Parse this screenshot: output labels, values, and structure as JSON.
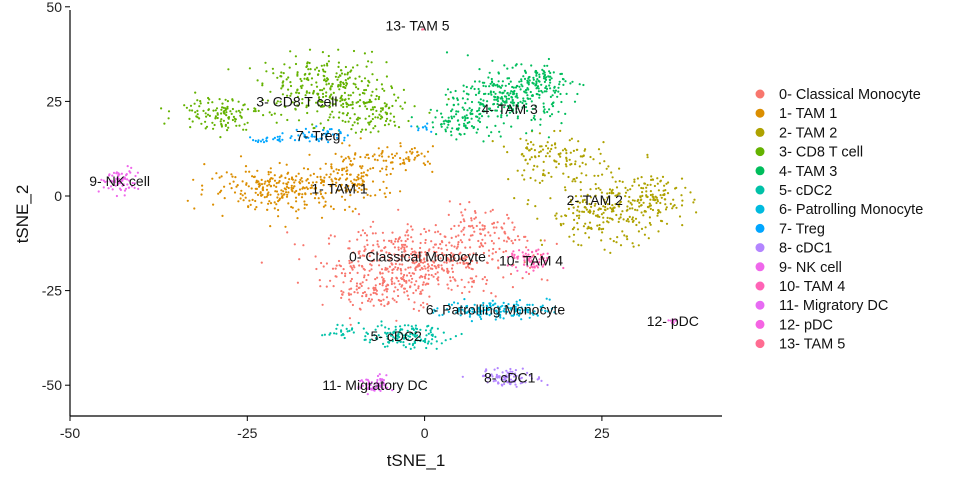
{
  "chart_data": {
    "type": "scatter",
    "title": "",
    "xlabel": "tSNE_1",
    "ylabel": "tSNE_2",
    "xlim": [
      -50,
      42
    ],
    "ylim": [
      -58,
      50
    ],
    "x_ticks": [
      -50,
      -25,
      0,
      25
    ],
    "y_ticks": [
      50,
      25,
      0,
      -25,
      -50
    ],
    "grid": false,
    "legend_position": "right",
    "clusters": [
      {
        "id": 0,
        "name": "0- Classical Monocyte",
        "color": "#F8766D",
        "label": "0- Classical Monocyte",
        "label_xy": [
          -1,
          -16
        ],
        "centroids": [
          [
            -1,
            -17,
            9,
            6,
            480
          ],
          [
            -6,
            -25,
            5,
            4,
            120
          ],
          [
            8,
            -10,
            4,
            4,
            80
          ]
        ]
      },
      {
        "id": 1,
        "name": "1- TAM 1",
        "color": "#DB8E00",
        "label": "1- TAM 1",
        "label_xy": [
          -12,
          2
        ],
        "centroids": [
          [
            -20,
            2,
            7,
            4,
            260
          ],
          [
            -10,
            5,
            4,
            5,
            120
          ],
          [
            -3,
            10,
            3,
            2,
            60
          ]
        ]
      },
      {
        "id": 2,
        "name": "2- TAM 2",
        "color": "#AEA200",
        "label": "2- TAM 2",
        "label_xy": [
          24,
          -1
        ],
        "centroids": [
          [
            26,
            -4,
            6,
            6,
            260
          ],
          [
            18,
            10,
            5,
            4,
            120
          ],
          [
            33,
            0,
            3,
            4,
            80
          ]
        ]
      },
      {
        "id": 3,
        "name": "3- CD8 T cell",
        "color": "#64B200",
        "label": "3- CD8 T cell",
        "label_xy": [
          -18,
          25
        ],
        "centroids": [
          [
            -14,
            29,
            6,
            5,
            260
          ],
          [
            -29,
            22,
            4,
            3,
            120
          ],
          [
            -9,
            22,
            5,
            4,
            120
          ]
        ]
      },
      {
        "id": 4,
        "name": "4- TAM 3",
        "color": "#00BD5C",
        "label": "4- TAM 3",
        "label_xy": [
          12,
          23
        ],
        "centroids": [
          [
            12,
            26,
            5,
            5,
            280
          ],
          [
            5,
            20,
            3,
            3,
            90
          ],
          [
            16,
            30,
            3,
            3,
            80
          ]
        ]
      },
      {
        "id": 5,
        "name": "5- cDC2",
        "color": "#00C1A7",
        "label": "5- cDC2",
        "label_xy": [
          -4,
          -37
        ],
        "centroids": [
          [
            -3,
            -37,
            4,
            2,
            140
          ],
          [
            -12,
            -36,
            1.5,
            1,
            20
          ]
        ]
      },
      {
        "id": 6,
        "name": "6- Patrolling Monocyte",
        "color": "#00BADE",
        "label": "6- Patrolling Monocyte",
        "label_xy": [
          10,
          -30
        ],
        "centroids": [
          [
            10,
            -30,
            5,
            1.6,
            150
          ]
        ]
      },
      {
        "id": 7,
        "name": "7- Treg",
        "color": "#00A6FF",
        "label": "7- Treg",
        "label_xy": [
          -15,
          16
        ],
        "centroids": [
          [
            -15,
            16,
            3,
            1.3,
            50
          ],
          [
            -22,
            15,
            1.5,
            0.8,
            20
          ],
          [
            0,
            18,
            1,
            0.8,
            10
          ]
        ]
      },
      {
        "id": 8,
        "name": "8- cDC1",
        "color": "#B385FF",
        "label": "8- cDC1",
        "label_xy": [
          12,
          -48
        ],
        "centroids": [
          [
            12,
            -48,
            3,
            1.5,
            90
          ]
        ]
      },
      {
        "id": 9,
        "name": "9- NK cell",
        "color": "#EF67EB",
        "label": "9- NK cell",
        "label_xy": [
          -43,
          4
        ],
        "centroids": [
          [
            -43,
            4,
            1.8,
            2.2,
            70
          ]
        ]
      },
      {
        "id": 10,
        "name": "10- TAM 4",
        "color": "#FF63B6",
        "label": "10- TAM 4",
        "label_xy": [
          15,
          -17
        ],
        "centroids": [
          [
            15,
            -17,
            2,
            2,
            70
          ]
        ]
      },
      {
        "id": 11,
        "name": "11- Migratory DC",
        "color": "#E76BF3",
        "label": "11- Migratory DC",
        "label_xy": [
          -7,
          -50
        ],
        "centroids": [
          [
            -7,
            -50,
            1.5,
            1.6,
            60
          ]
        ]
      },
      {
        "id": 12,
        "name": "12- pDC",
        "color": "#F564E3",
        "label": "12- pDC",
        "label_xy": [
          35,
          -33
        ],
        "centroids": [
          [
            35,
            -33,
            0.6,
            0.6,
            8
          ]
        ]
      },
      {
        "id": 13,
        "name": "13- TAM 5",
        "color": "#FF6C91",
        "label": "13- TAM 5",
        "label_xy": [
          -1,
          45
        ],
        "centroids": [
          [
            0,
            44,
            0.2,
            0.2,
            2
          ]
        ]
      }
    ]
  }
}
